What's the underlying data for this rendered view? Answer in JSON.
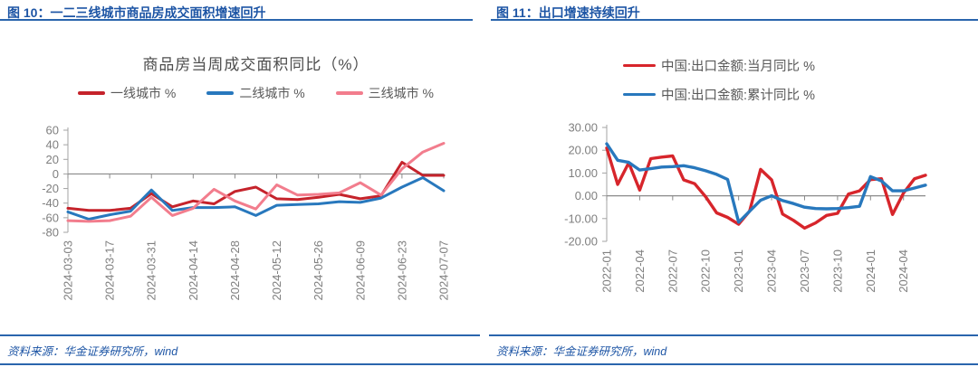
{
  "figures": {
    "left": {
      "caption": "图 10：一二三线城市商品房成交面积增速回升",
      "source": "资料来源：华金证券研究所，wind"
    },
    "right": {
      "caption": "图 11：出口增速持续回升",
      "source": "资料来源：华金证券研究所，wind"
    }
  },
  "colors": {
    "accent_blue": "#1d55a5",
    "rule_blue": "#2a65ad",
    "axis_gray": "#8a8a8a",
    "tick_text_gray": "#7f7f7f"
  },
  "chart_data": [
    {
      "type": "line",
      "title": "商品房当周成交面积同比（%）",
      "legend_position": "top-horizontal",
      "grid": false,
      "ylim": [
        -80,
        60
      ],
      "yticks": [
        60,
        40,
        20,
        0,
        -20,
        -40,
        -60,
        -80
      ],
      "ytick_labels": [
        "60",
        "40",
        "20",
        "0",
        "-20",
        "-40",
        "-60",
        "-80"
      ],
      "x_tick_every": 2,
      "x": [
        "2024-03-03",
        "2024-03-10",
        "2024-03-17",
        "2024-03-24",
        "2024-03-31",
        "2024-04-07",
        "2024-04-14",
        "2024-04-21",
        "2024-04-28",
        "2024-05-05",
        "2024-05-12",
        "2024-05-19",
        "2024-05-26",
        "2024-06-02",
        "2024-06-09",
        "2024-06-16",
        "2024-06-23",
        "2024-06-30",
        "2024-07-07"
      ],
      "series": [
        {
          "name": "一线城市 %",
          "color": "#c5232b",
          "values": [
            -47,
            -50,
            -50,
            -47,
            -27,
            -45,
            -37,
            -41,
            -24,
            -18,
            -34,
            -35,
            -32,
            -28,
            -34,
            -30,
            16,
            -2,
            -2
          ]
        },
        {
          "name": "二线城市 %",
          "color": "#2878bd",
          "values": [
            -52,
            -62,
            -56,
            -51,
            -22,
            -50,
            -46,
            -46,
            -45,
            -57,
            -43,
            -42,
            -41,
            -38,
            -39,
            -33,
            -18,
            -5,
            -23
          ]
        },
        {
          "name": "三线城市 %",
          "color": "#f27d8d",
          "values": [
            -64,
            -65,
            -64,
            -58,
            -32,
            -57,
            -47,
            -21,
            -37,
            -48,
            -15,
            -29,
            -28,
            -26,
            -12,
            -29,
            7,
            30,
            42
          ]
        }
      ]
    },
    {
      "type": "line",
      "title": "",
      "legend_position": "top-vertical",
      "grid": false,
      "ylim": [
        -20,
        30
      ],
      "yticks": [
        30,
        20,
        10,
        0,
        -10,
        -20
      ],
      "ytick_labels": [
        "30.00",
        "20.00",
        "10.00",
        "0.00",
        "-10.00",
        "-20.00"
      ],
      "x_tick_every": 3,
      "x": [
        "2022-01",
        "2022-02",
        "2022-03",
        "2022-04",
        "2022-05",
        "2022-06",
        "2022-07",
        "2022-08",
        "2022-09",
        "2022-10",
        "2022-11",
        "2022-12",
        "2023-01",
        "2023-02",
        "2023-03",
        "2023-04",
        "2023-05",
        "2023-06",
        "2023-07",
        "2023-08",
        "2023-09",
        "2023-10",
        "2023-11",
        "2023-12",
        "2024-01",
        "2024-02",
        "2024-03",
        "2024-04",
        "2024-05",
        "2024-06"
      ],
      "series": [
        {
          "name": "中国:出口金额:当月同比 %",
          "color": "#d7252b",
          "values": [
            21,
            5,
            14.5,
            2.5,
            16.3,
            17,
            17.5,
            7,
            5.3,
            -0.4,
            -7.5,
            -9.5,
            -12.5,
            -6.7,
            11.6,
            7,
            -8,
            -10.8,
            -14.2,
            -11.9,
            -8.6,
            -7.7,
            0.8,
            2.2,
            7.1,
            7.5,
            -8.2,
            1.2,
            7.5,
            9
          ]
        },
        {
          "name": "中国:出口金额:累计同比 %",
          "color": "#2878bd",
          "values": [
            22.8,
            15.6,
            14.7,
            11.3,
            11.9,
            12.6,
            12.8,
            13.2,
            12.3,
            11,
            9.4,
            7.2,
            -11.6,
            -6.8,
            -2,
            0,
            -2.1,
            -3.4,
            -5,
            -5.6,
            -5.7,
            -5.6,
            -5.2,
            -4.6,
            8.4,
            6.5,
            2.2,
            2.2,
            3.4,
            4.7
          ]
        }
      ]
    }
  ]
}
